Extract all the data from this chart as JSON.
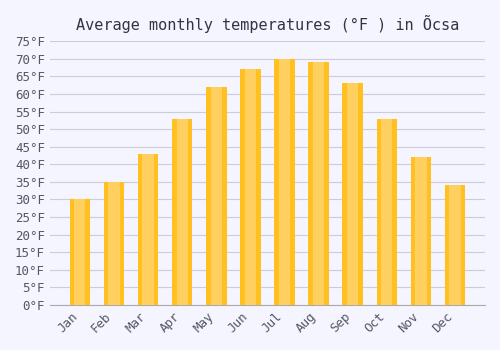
{
  "title": "Average monthly temperatures (°F ) in Õcsa",
  "months": [
    "Jan",
    "Feb",
    "Mar",
    "Apr",
    "May",
    "Jun",
    "Jul",
    "Aug",
    "Sep",
    "Oct",
    "Nov",
    "Dec"
  ],
  "values": [
    30,
    35,
    43,
    53,
    62,
    67,
    70,
    69,
    63,
    53,
    42,
    34
  ],
  "bar_color_top": "#FFC020",
  "bar_color_bottom": "#FFD060",
  "background_color": "#F5F5FF",
  "grid_color": "#CCCCDD",
  "ylim": [
    0,
    75
  ],
  "yticks": [
    0,
    5,
    10,
    15,
    20,
    25,
    30,
    35,
    40,
    45,
    50,
    55,
    60,
    65,
    70,
    75
  ],
  "title_fontsize": 11,
  "tick_fontsize": 9,
  "font_family": "monospace"
}
